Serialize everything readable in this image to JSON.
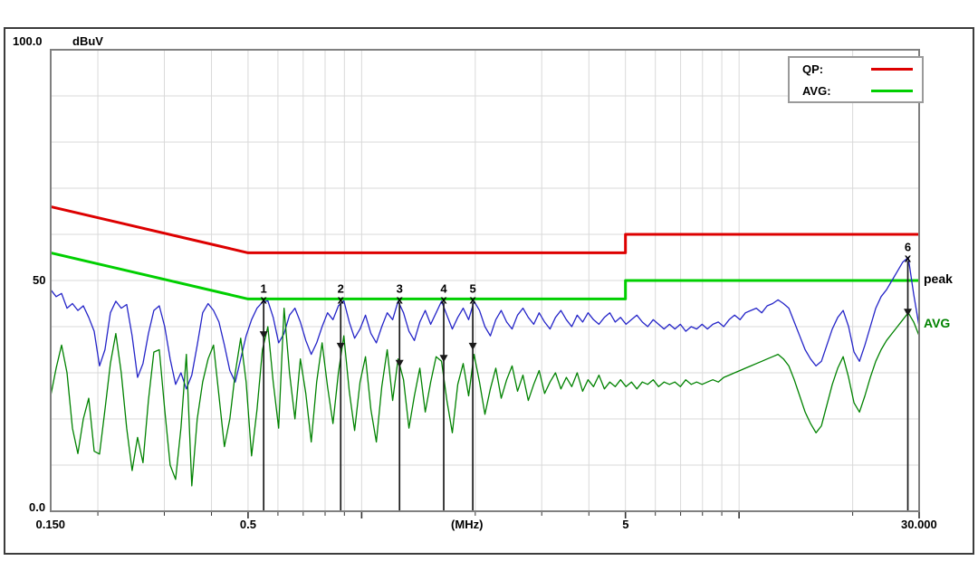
{
  "header": {
    "y_max_label": "100.0",
    "unit_label": "dBuV"
  },
  "legend": {
    "qp_label": "QP:",
    "avg_label": "AVG:",
    "qp_color": "#dd0000",
    "avg_color": "#00cf00"
  },
  "trace_labels": [
    {
      "text": "peak",
      "color": "#000000",
      "dB": 50.2
    },
    {
      "text": "AVG",
      "color": "#008200",
      "dB": 40.6
    }
  ],
  "chart_data": {
    "type": "line",
    "title": "",
    "xlabel": "(MHz)",
    "ylabel": "dBuV",
    "x_axis": {
      "scale": "log",
      "min": 0.15,
      "max": 30,
      "unit": "MHz",
      "grid_freqs": [
        0.2,
        0.3,
        0.4,
        0.5,
        0.6,
        0.7,
        0.8,
        0.9,
        1,
        2,
        3,
        4,
        5,
        6,
        7,
        8,
        9,
        10,
        20
      ],
      "tick_freqs": [
        0.2,
        0.3,
        0.4,
        0.5,
        0.6,
        0.7,
        0.8,
        0.9,
        1,
        2,
        3,
        4,
        5,
        6,
        7,
        8,
        9,
        10,
        20,
        30
      ],
      "major_ticks": [
        0.5,
        1,
        5,
        10,
        30
      ],
      "tick_labels": [
        {
          "text": "0.150",
          "f": 0.15
        },
        {
          "text": "0.5",
          "f": 0.5
        },
        {
          "text": "(MHz)",
          "f": 1.9
        },
        {
          "text": "5",
          "f": 5
        },
        {
          "text": "30.000",
          "f": 30
        }
      ]
    },
    "y_axis": {
      "min": 0,
      "max": 100,
      "unit": "dBuV",
      "grid_step": 10,
      "tick_labels": [
        {
          "text": "50",
          "dB": 50
        },
        {
          "text": "0.0",
          "dB": 0
        }
      ]
    },
    "grid_color": "#d9d9d9",
    "border_color": "#808080",
    "series": [
      {
        "name": "QP limit",
        "legend": "QP:",
        "color": "#dd0000",
        "width": 3,
        "points": [
          [
            0.15,
            66
          ],
          [
            0.5,
            56
          ],
          [
            5,
            56
          ],
          [
            5,
            60
          ],
          [
            30,
            60
          ]
        ]
      },
      {
        "name": "AVG limit",
        "legend": "AVG:",
        "color": "#00cf00",
        "width": 3,
        "points": [
          [
            0.15,
            56
          ],
          [
            0.5,
            46
          ],
          [
            5,
            46
          ],
          [
            5,
            50
          ],
          [
            30,
            50
          ]
        ]
      },
      {
        "name": "peak",
        "color": "#2424c8",
        "width": 1.3,
        "sampling": {
          "type": "log-uniform",
          "f_start": 0.15,
          "f_end": 30,
          "points": 161
        },
        "values": [
          48.0,
          46.5,
          47.2,
          44.0,
          45.0,
          43.5,
          44.5,
          42.0,
          39.0,
          31.5,
          35.0,
          43.0,
          45.5,
          44.0,
          44.8,
          38.0,
          29.0,
          32.0,
          38.5,
          43.5,
          44.5,
          40.0,
          33.0,
          27.5,
          30.0,
          26.5,
          29.5,
          36.0,
          43.0,
          45.0,
          43.5,
          41.0,
          36.0,
          30.5,
          28.0,
          33.0,
          38.0,
          41.5,
          44.0,
          45.3,
          45.6,
          42.0,
          36.5,
          38.5,
          42.5,
          44.0,
          41.0,
          37.0,
          34.0,
          36.5,
          40.0,
          43.0,
          41.5,
          44.5,
          45.6,
          41.0,
          37.5,
          39.5,
          42.5,
          38.5,
          36.5,
          40.0,
          43.0,
          41.5,
          45.5,
          43.0,
          39.0,
          37.0,
          41.0,
          43.5,
          40.5,
          43.0,
          45.5,
          42.5,
          39.5,
          42.0,
          44.0,
          41.5,
          45.5,
          43.5,
          40.0,
          38.0,
          41.5,
          43.5,
          41.0,
          39.5,
          42.5,
          44.0,
          42.0,
          40.5,
          43.0,
          41.0,
          39.5,
          42.0,
          43.5,
          41.5,
          40.0,
          42.5,
          41.0,
          43.0,
          41.5,
          40.5,
          42.0,
          43.0,
          41.0,
          42.0,
          40.5,
          41.5,
          42.5,
          41.0,
          40.0,
          41.5,
          40.5,
          39.5,
          40.5,
          39.5,
          40.5,
          39.0,
          40.0,
          39.5,
          40.5,
          39.5,
          40.5,
          41.0,
          40.0,
          41.5,
          42.5,
          41.5,
          43.0,
          43.5,
          44.0,
          43.0,
          44.5,
          45.0,
          45.8,
          45.0,
          44.0,
          41.0,
          38.0,
          35.0,
          33.0,
          31.5,
          32.5,
          36.0,
          39.5,
          42.0,
          43.5,
          40.0,
          34.5,
          32.5,
          36.0,
          40.0,
          44.0,
          46.5,
          48.0,
          50.0,
          52.0,
          54.0,
          55.0,
          47.0,
          40.0
        ]
      },
      {
        "name": "AVG",
        "color": "#008200",
        "width": 1.3,
        "sampling": {
          "type": "log-uniform",
          "f_start": 0.15,
          "f_end": 30,
          "points": 161
        },
        "values": [
          25.0,
          31.0,
          36.0,
          30.0,
          18.0,
          12.5,
          20.0,
          24.5,
          13.0,
          12.4,
          22.0,
          32.0,
          38.5,
          30.0,
          18.0,
          8.8,
          16.0,
          10.5,
          24.0,
          34.5,
          35.0,
          22.0,
          10.0,
          6.9,
          18.0,
          34.0,
          5.5,
          20.0,
          28.0,
          33.0,
          36.0,
          25.0,
          14.0,
          20.0,
          30.0,
          37.5,
          28.0,
          12.0,
          22.0,
          35.0,
          40.0,
          28.0,
          18.0,
          44.0,
          30.0,
          20.0,
          33.0,
          25.5,
          15.0,
          28.0,
          36.5,
          27.0,
          19.0,
          30.0,
          38.0,
          26.0,
          17.5,
          28.0,
          33.5,
          22.0,
          15.0,
          27.0,
          35.0,
          24.0,
          33.0,
          28.5,
          18.0,
          25.0,
          31.0,
          21.5,
          28.0,
          33.5,
          32.5,
          24.0,
          17.0,
          27.5,
          32.0,
          25.0,
          34.0,
          28.0,
          21.0,
          26.5,
          31.0,
          24.5,
          28.5,
          31.5,
          26.0,
          29.5,
          24.0,
          27.5,
          30.5,
          25.5,
          28.0,
          30.0,
          26.5,
          29.0,
          27.0,
          30.0,
          26.0,
          28.5,
          27.0,
          29.5,
          26.5,
          28.0,
          27.0,
          28.5,
          27.0,
          28.0,
          26.5,
          28.0,
          27.5,
          28.5,
          27.0,
          28.0,
          27.5,
          28.0,
          27.0,
          28.5,
          27.5,
          28.0,
          27.5,
          28.0,
          28.5,
          28.0,
          29.0,
          29.5,
          30.0,
          30.5,
          31.0,
          31.5,
          32.0,
          32.5,
          33.0,
          33.5,
          34.0,
          33.0,
          31.5,
          28.5,
          25.0,
          21.5,
          19.0,
          17.0,
          18.5,
          23.0,
          27.5,
          31.0,
          33.5,
          29.0,
          23.5,
          21.5,
          25.0,
          29.0,
          32.5,
          35.0,
          37.0,
          38.5,
          40.0,
          41.5,
          43.0,
          41.0,
          38.0
        ]
      }
    ],
    "markers": [
      {
        "label": "1",
        "freq": 0.55,
        "dB": 46,
        "arrow_dB": 38.2
      },
      {
        "label": "2",
        "freq": 0.88,
        "dB": 46,
        "arrow_dB": 35.7
      },
      {
        "label": "3",
        "freq": 1.26,
        "dB": 46,
        "arrow_dB": 32.0
      },
      {
        "label": "4",
        "freq": 1.65,
        "dB": 46,
        "arrow_dB": 33.1
      },
      {
        "label": "5",
        "freq": 1.97,
        "dB": 46,
        "arrow_dB": 35.7
      },
      {
        "label": "6",
        "freq": 28.0,
        "dB": 55,
        "arrow_dB": 43.1
      }
    ]
  }
}
